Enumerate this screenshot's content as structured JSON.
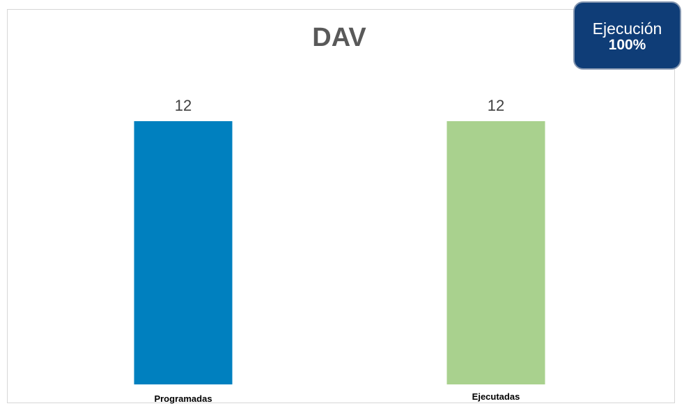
{
  "chart_data": {
    "type": "bar",
    "title": "DAV",
    "categories": [
      "Programadas",
      "Ejecutadas"
    ],
    "values": [
      12,
      12
    ],
    "colors": [
      "#0080bf",
      "#a9d18e"
    ],
    "ylim": [
      0,
      12
    ],
    "grid": false,
    "data_labels": true
  },
  "badge": {
    "label": "Ejecución",
    "value": "100%",
    "background": "#0f3d77"
  }
}
